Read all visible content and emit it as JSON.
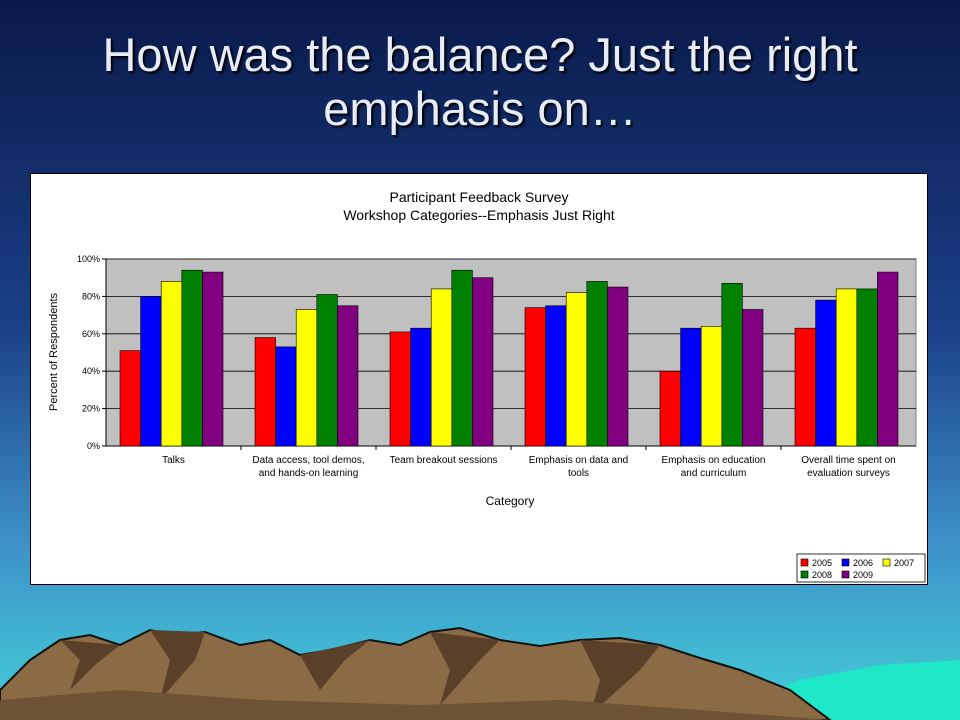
{
  "slide": {
    "title": "How was the balance? Just the right emphasis on…"
  },
  "chart_data": {
    "type": "bar",
    "title": "Participant Feedback Survey",
    "subtitle": "Workshop Categories--Emphasis Just Right",
    "xlabel": "Category",
    "ylabel": "Percent of Respondents",
    "ylim": [
      0,
      100
    ],
    "y_ticks": [
      "0%",
      "20%",
      "40%",
      "60%",
      "80%",
      "100%"
    ],
    "grid": true,
    "legend_position": "bottom-right",
    "categories": [
      [
        "Talks"
      ],
      [
        "Data access, tool demos,",
        "and hands-on learning"
      ],
      [
        "Team breakout sessions"
      ],
      [
        "Emphasis on data and",
        "tools"
      ],
      [
        "Emphasis on education",
        "and curriculum"
      ],
      [
        "Overall time spent on",
        "evaluation surveys"
      ]
    ],
    "series": [
      {
        "name": "2005",
        "color": "#ff0000",
        "values": [
          51,
          58,
          61,
          74,
          40,
          63
        ]
      },
      {
        "name": "2006",
        "color": "#0000ff",
        "values": [
          80,
          53,
          63,
          75,
          63,
          78
        ]
      },
      {
        "name": "2007",
        "color": "#ffff00",
        "values": [
          88,
          73,
          84,
          82,
          64,
          84
        ]
      },
      {
        "name": "2008",
        "color": "#008000",
        "values": [
          94,
          81,
          94,
          88,
          87,
          84
        ]
      },
      {
        "name": "2009",
        "color": "#800080",
        "values": [
          93,
          75,
          90,
          85,
          73,
          93
        ]
      }
    ]
  }
}
